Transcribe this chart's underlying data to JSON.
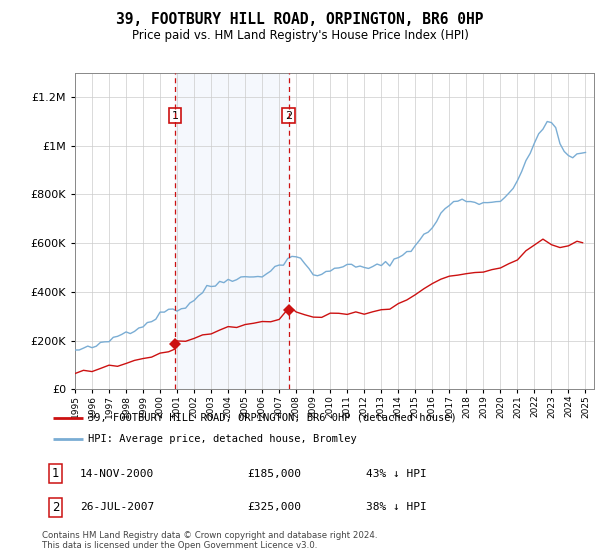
{
  "title": "39, FOOTBURY HILL ROAD, ORPINGTON, BR6 0HP",
  "subtitle": "Price paid vs. HM Land Registry's House Price Index (HPI)",
  "legend_line1": "39, FOOTBURY HILL ROAD, ORPINGTON, BR6 0HP (detached house)",
  "legend_line2": "HPI: Average price, detached house, Bromley",
  "annotation1_date": "14-NOV-2000",
  "annotation1_price": "£185,000",
  "annotation1_pct": "43% ↓ HPI",
  "annotation1_year": 2000.87,
  "annotation1_value": 185000,
  "annotation2_date": "26-JUL-2007",
  "annotation2_price": "£325,000",
  "annotation2_pct": "38% ↓ HPI",
  "annotation2_year": 2007.56,
  "annotation2_value": 325000,
  "hpi_color": "#7aadd4",
  "property_color": "#cc1111",
  "vline_color": "#cc1111",
  "shade_color": "#ddeeff",
  "footer": "Contains HM Land Registry data © Crown copyright and database right 2024.\nThis data is licensed under the Open Government Licence v3.0.",
  "ylim": [
    0,
    1300000
  ],
  "xlim_start": 1995.0,
  "xlim_end": 2025.5,
  "hpi_years": [
    1995,
    1995.25,
    1995.5,
    1995.75,
    1996,
    1996.25,
    1996.5,
    1996.75,
    1997,
    1997.25,
    1997.5,
    1997.75,
    1998,
    1998.25,
    1998.5,
    1998.75,
    1999,
    1999.25,
    1999.5,
    1999.75,
    2000,
    2000.25,
    2000.5,
    2000.75,
    2001,
    2001.25,
    2001.5,
    2001.75,
    2002,
    2002.25,
    2002.5,
    2002.75,
    2003,
    2003.25,
    2003.5,
    2003.75,
    2004,
    2004.25,
    2004.5,
    2004.75,
    2005,
    2005.25,
    2005.5,
    2005.75,
    2006,
    2006.25,
    2006.5,
    2006.75,
    2007,
    2007.25,
    2007.5,
    2007.75,
    2008,
    2008.25,
    2008.5,
    2008.75,
    2009,
    2009.25,
    2009.5,
    2009.75,
    2010,
    2010.25,
    2010.5,
    2010.75,
    2011,
    2011.25,
    2011.5,
    2011.75,
    2012,
    2012.25,
    2012.5,
    2012.75,
    2013,
    2013.25,
    2013.5,
    2013.75,
    2014,
    2014.25,
    2014.5,
    2014.75,
    2015,
    2015.25,
    2015.5,
    2015.75,
    2016,
    2016.25,
    2016.5,
    2016.75,
    2017,
    2017.25,
    2017.5,
    2017.75,
    2018,
    2018.25,
    2018.5,
    2018.75,
    2019,
    2019.25,
    2019.5,
    2019.75,
    2020,
    2020.25,
    2020.5,
    2020.75,
    2021,
    2021.25,
    2021.5,
    2021.75,
    2022,
    2022.25,
    2022.5,
    2022.75,
    2023,
    2023.25,
    2023.5,
    2023.75,
    2024,
    2024.25,
    2024.5,
    2024.75,
    2025
  ],
  "hpi_vals": [
    158000,
    162000,
    165000,
    168000,
    172000,
    178000,
    183000,
    190000,
    198000,
    210000,
    220000,
    228000,
    234000,
    240000,
    248000,
    255000,
    262000,
    272000,
    283000,
    296000,
    308000,
    318000,
    328000,
    338000,
    324000,
    330000,
    340000,
    352000,
    368000,
    385000,
    400000,
    415000,
    422000,
    430000,
    438000,
    445000,
    450000,
    455000,
    458000,
    460000,
    458000,
    460000,
    462000,
    465000,
    470000,
    478000,
    488000,
    498000,
    508000,
    520000,
    535000,
    548000,
    548000,
    535000,
    510000,
    490000,
    475000,
    468000,
    470000,
    478000,
    488000,
    498000,
    505000,
    510000,
    508000,
    505000,
    502000,
    500000,
    498000,
    500000,
    502000,
    505000,
    508000,
    515000,
    522000,
    530000,
    540000,
    552000,
    565000,
    578000,
    592000,
    610000,
    628000,
    648000,
    668000,
    692000,
    718000,
    740000,
    758000,
    768000,
    772000,
    775000,
    775000,
    773000,
    770000,
    768000,
    765000,
    765000,
    768000,
    772000,
    780000,
    790000,
    808000,
    830000,
    858000,
    892000,
    928000,
    968000,
    1010000,
    1050000,
    1080000,
    1100000,
    1095000,
    1060000,
    1010000,
    975000,
    960000,
    958000,
    960000,
    965000,
    968000
  ],
  "prop_years": [
    1995,
    1995.5,
    1996,
    1996.5,
    1997,
    1997.5,
    1998,
    1998.5,
    1999,
    1999.5,
    2000,
    2000.5,
    2000.87,
    2000.87,
    2001,
    2001.5,
    2002,
    2002.5,
    2003,
    2003.5,
    2004,
    2004.5,
    2005,
    2005.5,
    2006,
    2006.5,
    2007,
    2007.4,
    2007.56,
    2007.56,
    2007.75,
    2008,
    2008.5,
    2009,
    2009.5,
    2010,
    2010.5,
    2011,
    2011.5,
    2012,
    2012.5,
    2013,
    2013.5,
    2014,
    2014.5,
    2015,
    2015.5,
    2016,
    2016.5,
    2017,
    2017.5,
    2018,
    2018.5,
    2019,
    2019.5,
    2020,
    2020.5,
    2021,
    2021.5,
    2022,
    2022.5,
    2023,
    2023.5,
    2024,
    2024.5,
    2024.83
  ],
  "prop_vals": [
    68000,
    72000,
    78000,
    83000,
    90000,
    98000,
    108000,
    118000,
    128000,
    138000,
    148000,
    158000,
    163000,
    185000,
    192000,
    200000,
    210000,
    220000,
    232000,
    242000,
    252000,
    260000,
    265000,
    270000,
    275000,
    282000,
    292000,
    318000,
    322000,
    325000,
    330000,
    320000,
    305000,
    295000,
    298000,
    305000,
    310000,
    312000,
    315000,
    312000,
    315000,
    322000,
    332000,
    348000,
    365000,
    385000,
    405000,
    435000,
    455000,
    468000,
    472000,
    475000,
    478000,
    480000,
    488000,
    498000,
    510000,
    532000,
    558000,
    590000,
    620000,
    598000,
    580000,
    590000,
    605000,
    600000
  ]
}
